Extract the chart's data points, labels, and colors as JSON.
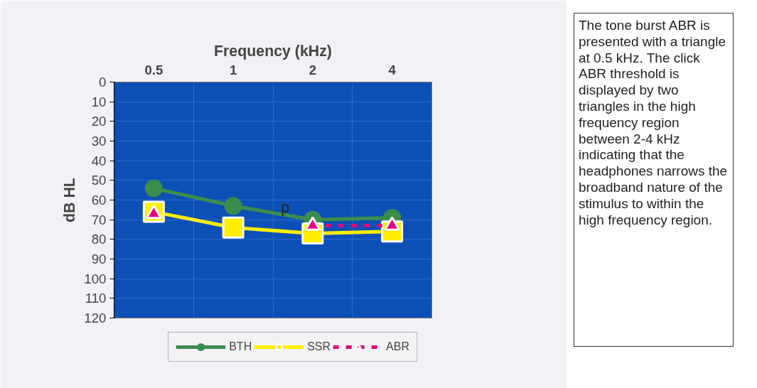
{
  "chart_data": {
    "type": "line",
    "xlabel": "Frequency (kHz)",
    "ylabel": "dB HL",
    "categories": [
      "0.5",
      "1",
      "2",
      "4"
    ],
    "ylim": [
      120,
      0
    ],
    "yticks": [
      0,
      10,
      20,
      30,
      40,
      50,
      60,
      70,
      80,
      90,
      100,
      110,
      120
    ],
    "grid": true,
    "legend": "bottom",
    "line_style": "solid",
    "series": [
      {
        "name": "BTH",
        "color": "#3c8c4c",
        "marker": "circle",
        "values": [
          54,
          63,
          70,
          69
        ]
      },
      {
        "name": "SSR",
        "color": "#ffee00",
        "marker": "square",
        "values": [
          66,
          74,
          77,
          76
        ]
      },
      {
        "name": "ABR",
        "color": "#e6007e",
        "marker": "triangle",
        "line_style": "dashed",
        "values": [
          67,
          null,
          73,
          73
        ]
      }
    ],
    "annotations": [
      {
        "text": "p",
        "x": "2",
        "y": 68
      },
      "The tone burst ABR is presented with a triangle at 0.5 kHz. The click ABR threshold is displayed by two triangles in the high frequency region between 2-4 kHz indicating that the headphones narrows the broadband nature of the stimulus to within the high frequency region."
    ]
  }
}
